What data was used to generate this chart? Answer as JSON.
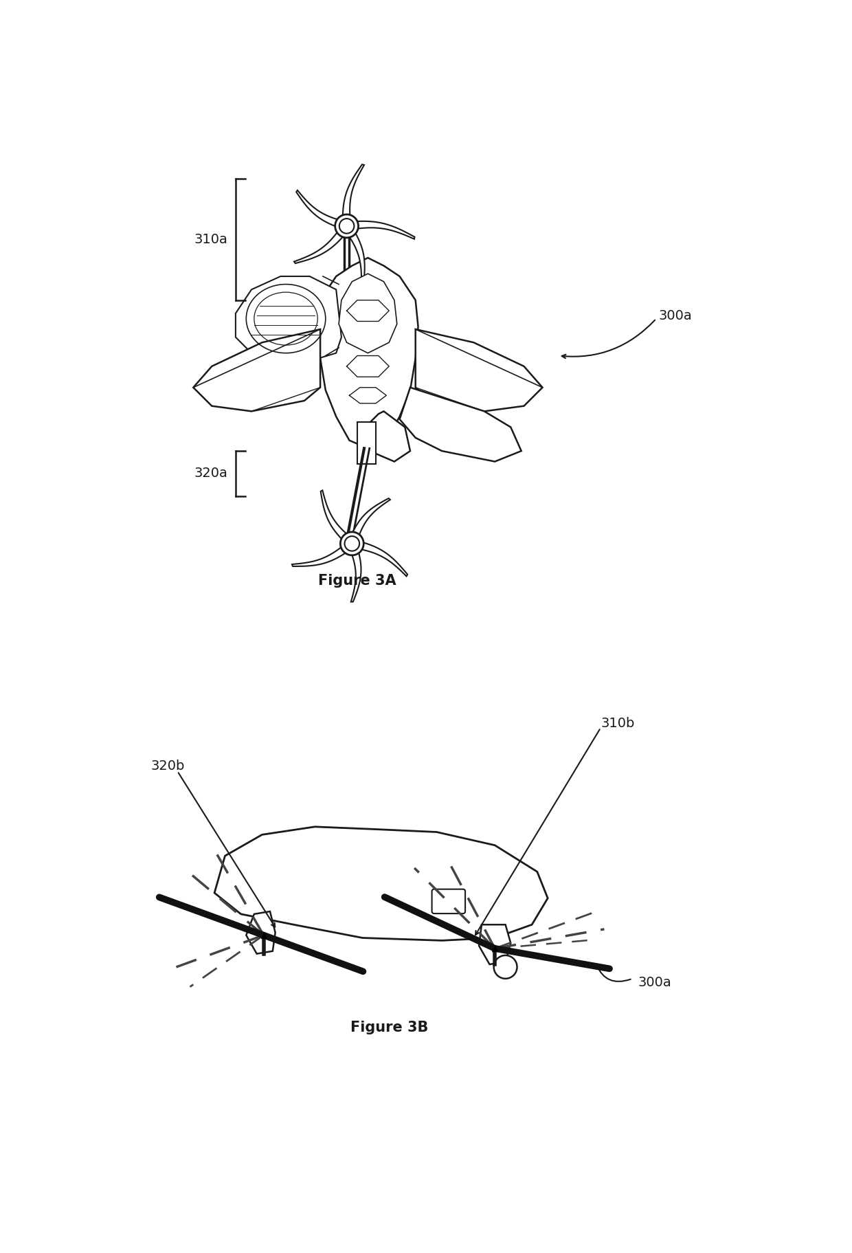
{
  "fig3a_label": "Figure 3A",
  "fig3b_label": "Figure 3B",
  "label_310a": "310a",
  "label_320a": "320a",
  "label_300a_top": "300a",
  "label_310b": "310b",
  "label_320b": "320b",
  "label_300a_bot": "300a",
  "bg_color": "#ffffff",
  "line_color": "#1a1a1a",
  "text_color": "#1a1a1a",
  "font_size_label": 14,
  "font_size_fig": 14
}
